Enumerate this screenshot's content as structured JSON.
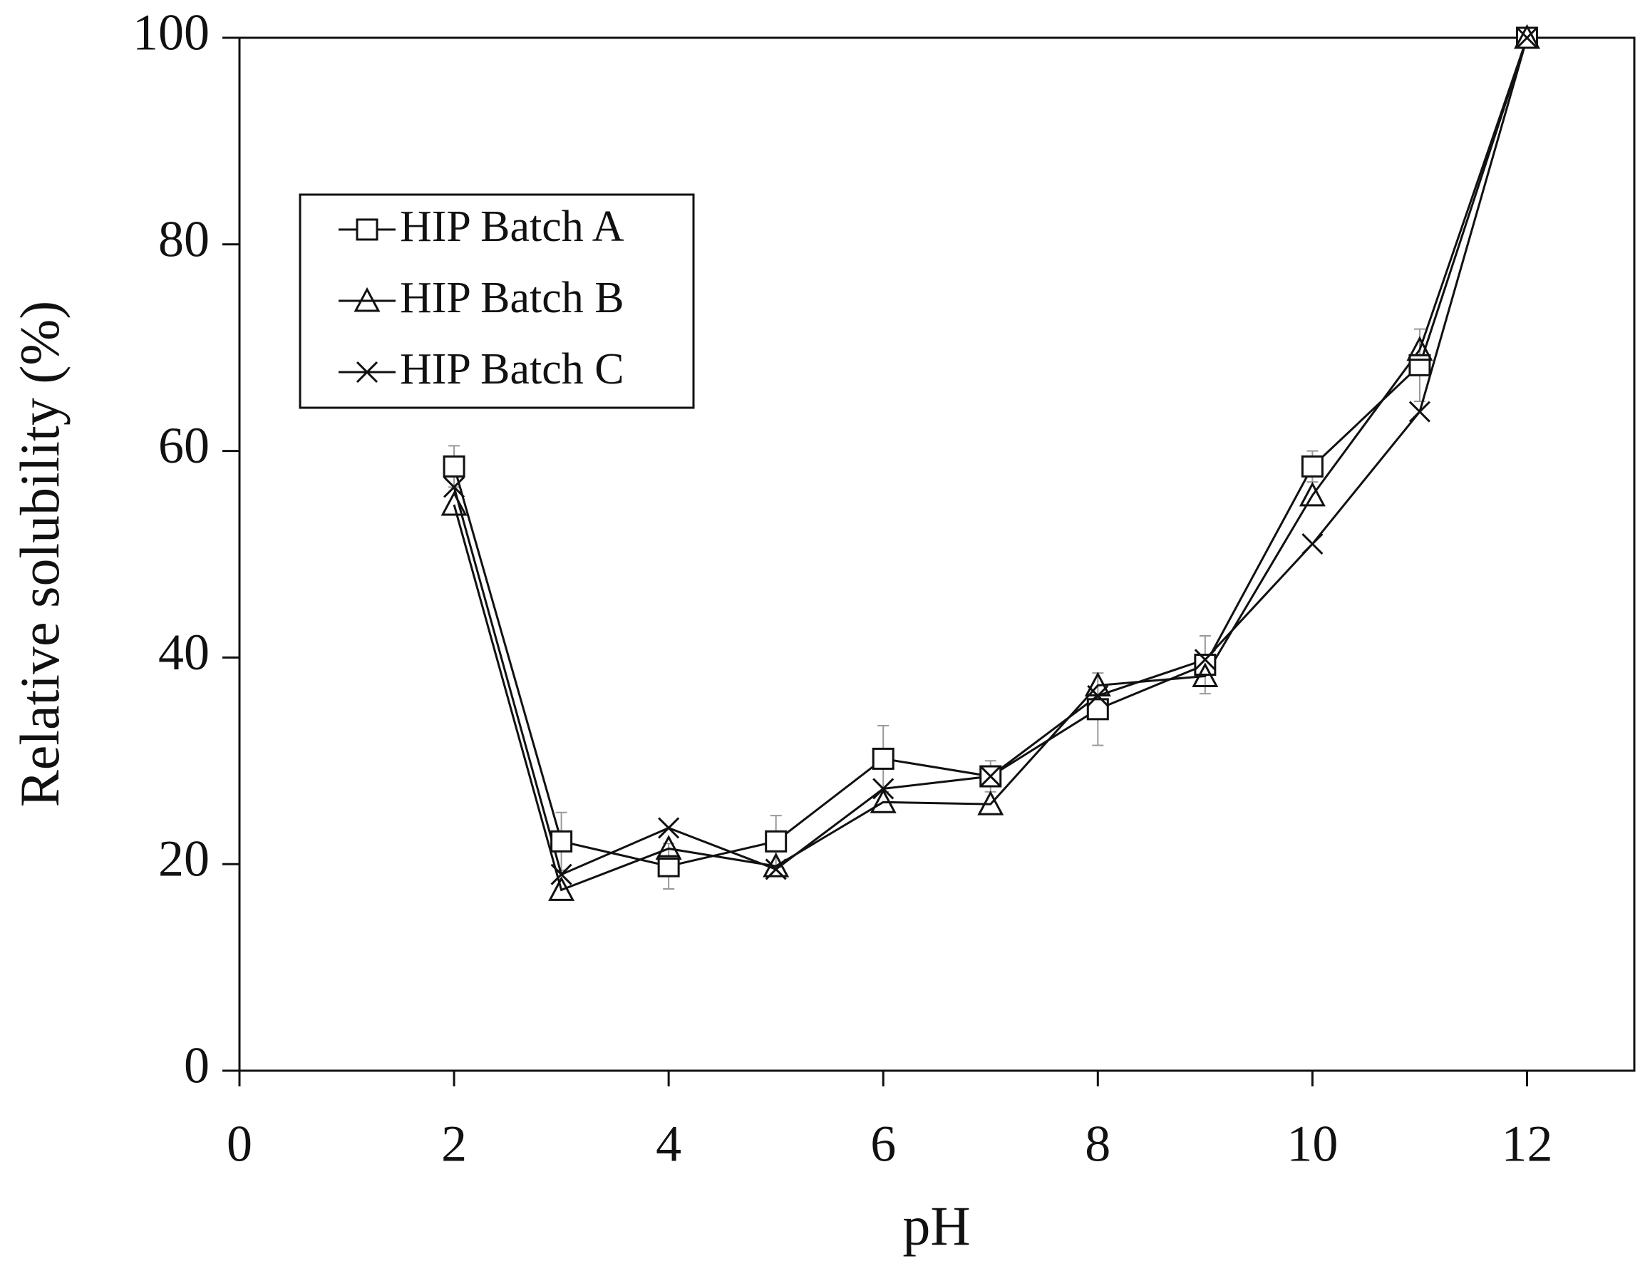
{
  "chart_data": {
    "type": "line",
    "x_label": "pH",
    "y_label": "Relative solubility (%)",
    "x": [
      2,
      3,
      4,
      5,
      6,
      7,
      8,
      9,
      10,
      11,
      12
    ],
    "xlim": [
      0,
      13
    ],
    "xticks": [
      0,
      2,
      4,
      6,
      8,
      10,
      12
    ],
    "ylim": [
      0,
      100
    ],
    "yticks": [
      0,
      20,
      40,
      60,
      80,
      100
    ],
    "legend": "upper left",
    "series": [
      {
        "name": "HIP Batch A",
        "color": "#111111",
        "marker": "square",
        "values": [
          58.5,
          22.2,
          19.8,
          22.2,
          30.2,
          28.5,
          35,
          39.3,
          58.5,
          68.3,
          100
        ],
        "errors": [
          2,
          2.8,
          2.2,
          2.5,
          3.2,
          1.5,
          3.5,
          2.8,
          1.5,
          3.5,
          0
        ]
      },
      {
        "name": "HIP Batch B",
        "color": "#111111",
        "marker": "triangle",
        "values": [
          54.8,
          17.5,
          21.5,
          19.8,
          26,
          25.8,
          37.3,
          38.2,
          55.7,
          69.8,
          100
        ]
      },
      {
        "name": "HIP Batch C",
        "color": "#111111",
        "marker": "x",
        "values": [
          56.5,
          19,
          23.5,
          19.5,
          27.3,
          28.5,
          36.3,
          39.8,
          51,
          63.8,
          100
        ]
      }
    ]
  }
}
